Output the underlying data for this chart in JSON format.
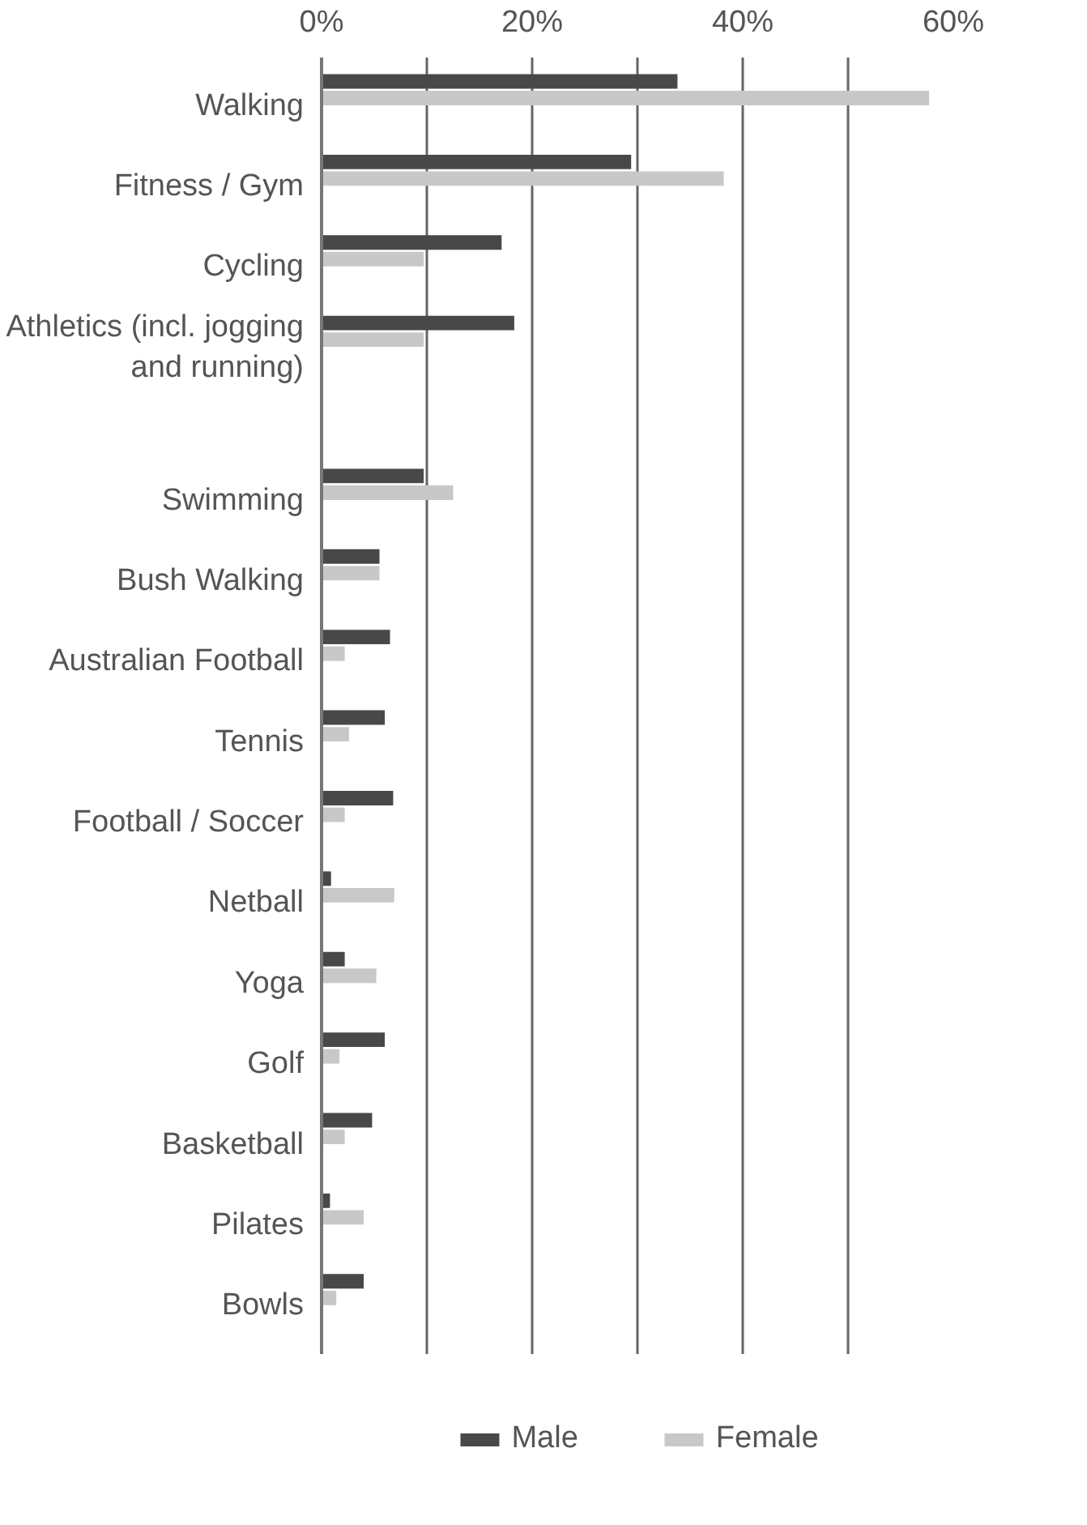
{
  "chart_data": {
    "type": "bar",
    "orientation": "horizontal",
    "categories": [
      "Walking",
      "Fitness / Gym",
      "Cycling",
      "Athletics (incl. jogging and running)",
      "Swimming",
      "Bush Walking",
      "Australian Football",
      "Tennis",
      "Football / Soccer",
      "Netball",
      "Yoga",
      "Golf",
      "Basketball",
      "Pilates",
      "Bowls"
    ],
    "series": [
      {
        "name": "Male",
        "color": "#484848",
        "values": [
          33.8,
          29.4,
          17.1,
          18.3,
          9.7,
          5.5,
          6.5,
          6.0,
          6.8,
          0.9,
          2.2,
          6.0,
          4.8,
          0.8,
          4.0
        ]
      },
      {
        "name": "Female",
        "color": "#c8c8c8",
        "values": [
          57.7,
          38.2,
          9.7,
          9.7,
          12.5,
          5.5,
          2.2,
          2.6,
          2.2,
          6.9,
          5.2,
          1.7,
          2.2,
          4.0,
          1.4
        ]
      }
    ],
    "xlim": [
      0,
      60
    ],
    "xticks": [
      {
        "value": 0,
        "label": "0%"
      },
      {
        "value": 10,
        "label": null
      },
      {
        "value": 20,
        "label": "20%"
      },
      {
        "value": 30,
        "label": null
      },
      {
        "value": 40,
        "label": "40%"
      },
      {
        "value": 50,
        "label": null
      },
      {
        "value": 60,
        "label": "60%"
      }
    ],
    "grid": "x",
    "legend": "bottom"
  }
}
